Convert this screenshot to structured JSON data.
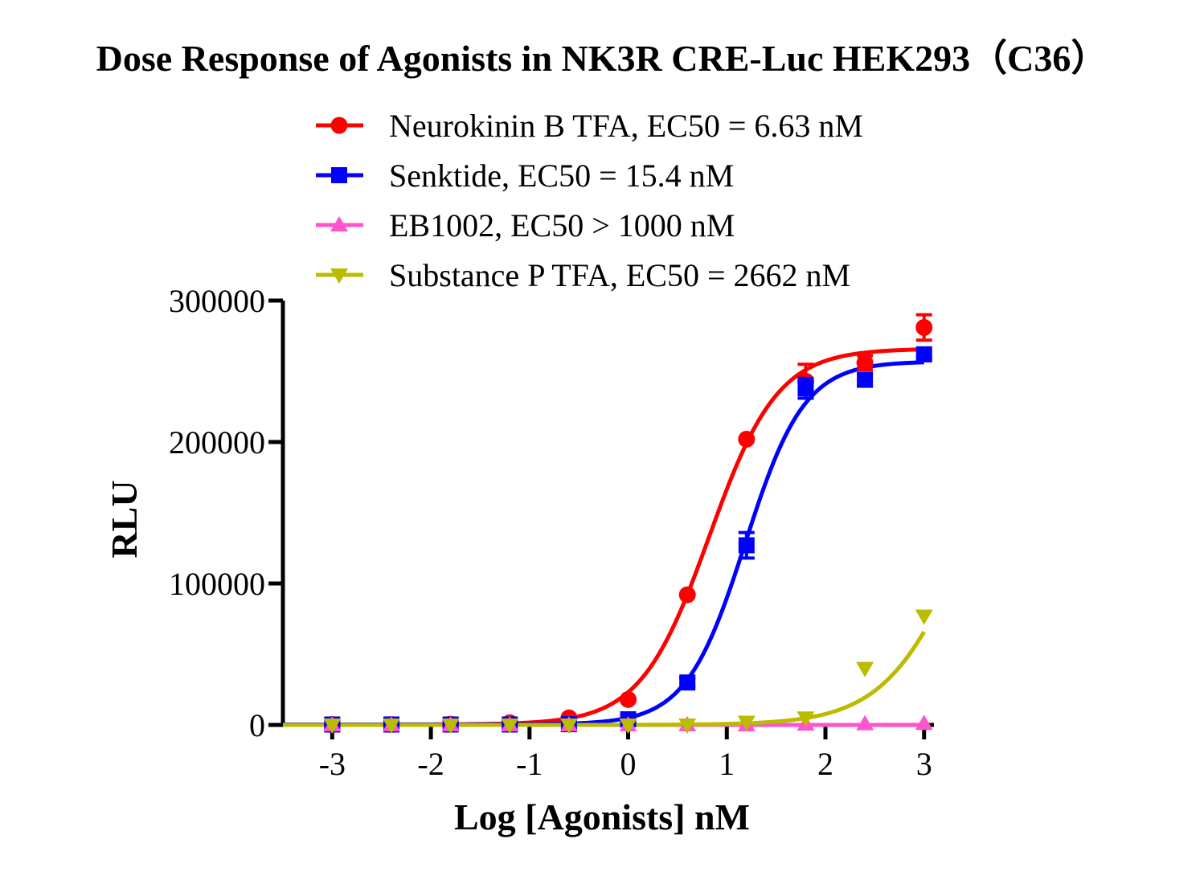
{
  "chart_data": {
    "type": "line",
    "title": "Dose Response of Agonists in NK3R CRE-Luc HEK293（C36）",
    "xlabel": "Log [Agonists] nM",
    "ylabel": "RLU",
    "xlim": [
      -3.5,
      3.1
    ],
    "ylim": [
      0,
      300000
    ],
    "xticks": [
      -3,
      -2,
      -1,
      0,
      1,
      2,
      3
    ],
    "xtick_labels": [
      "-3",
      "-2",
      "-1",
      "0",
      "1",
      "2",
      "3"
    ],
    "yticks": [
      0,
      100000,
      200000,
      300000
    ],
    "ytick_labels": [
      "0",
      "100000",
      "200000",
      "300000"
    ],
    "grid": false,
    "legend": "top-center",
    "series": [
      {
        "name": "Neurokinin B TFA, EC50 = 6.63 nM",
        "color": "#ff0000",
        "marker": "circle",
        "logEC50": 0.8215,
        "bottom": 300,
        "top": 266000,
        "hill": 1.25,
        "x": [
          -3,
          -2.4,
          -1.8,
          -1.2,
          -0.6,
          0,
          0.6,
          1.2,
          1.8,
          2.4,
          3
        ],
        "y": [
          300,
          300,
          500,
          1500,
          5000,
          18000,
          92000,
          202000,
          243000,
          256000,
          281000
        ],
        "err": [
          0,
          0,
          0,
          0,
          0,
          0,
          0,
          0,
          12000,
          5000,
          9000
        ]
      },
      {
        "name": "Senktide, EC50 = 15.4 nM",
        "color": "#0000ff",
        "marker": "square",
        "logEC50": 1.1875,
        "bottom": 300,
        "top": 257000,
        "hill": 1.45,
        "x": [
          -3,
          -2.4,
          -1.8,
          -1.2,
          -0.6,
          0,
          0.6,
          1.2,
          1.8,
          2.4,
          3
        ],
        "y": [
          300,
          300,
          300,
          300,
          500,
          4000,
          30000,
          127000,
          238000,
          244000,
          262000
        ],
        "err": [
          0,
          0,
          0,
          0,
          0,
          0,
          3000,
          9000,
          7000,
          4000,
          4000
        ]
      },
      {
        "name": "EB1002, EC50 > 1000 nM",
        "color": "#ff55cc",
        "marker": "triangle-up",
        "logEC50": 4.0,
        "bottom": 0,
        "top": 1000,
        "hill": 1.0,
        "x": [
          -3,
          -2.4,
          -1.8,
          -1.2,
          -0.6,
          0,
          0.6,
          1.2,
          1.8,
          2.4,
          3
        ],
        "y": [
          0,
          0,
          0,
          0,
          0,
          0,
          0,
          0,
          500,
          800,
          1000
        ],
        "err": [
          0,
          0,
          0,
          0,
          0,
          0,
          0,
          0,
          0,
          0,
          0
        ]
      },
      {
        "name": "Substance P TFA, EC50 = 2662 nM",
        "color": "#bbbb00",
        "marker": "triangle-down",
        "logEC50": 3.425,
        "bottom": 0,
        "top": 250000,
        "hill": 1.05,
        "x": [
          -3,
          -2.4,
          -1.8,
          -1.2,
          -0.6,
          0,
          0.6,
          1.2,
          1.8,
          2.4,
          3
        ],
        "y": [
          0,
          0,
          0,
          0,
          0,
          0,
          0,
          2000,
          5000,
          40000,
          77000
        ],
        "err": [
          0,
          0,
          0,
          0,
          0,
          0,
          0,
          0,
          0,
          0,
          0
        ]
      }
    ]
  }
}
